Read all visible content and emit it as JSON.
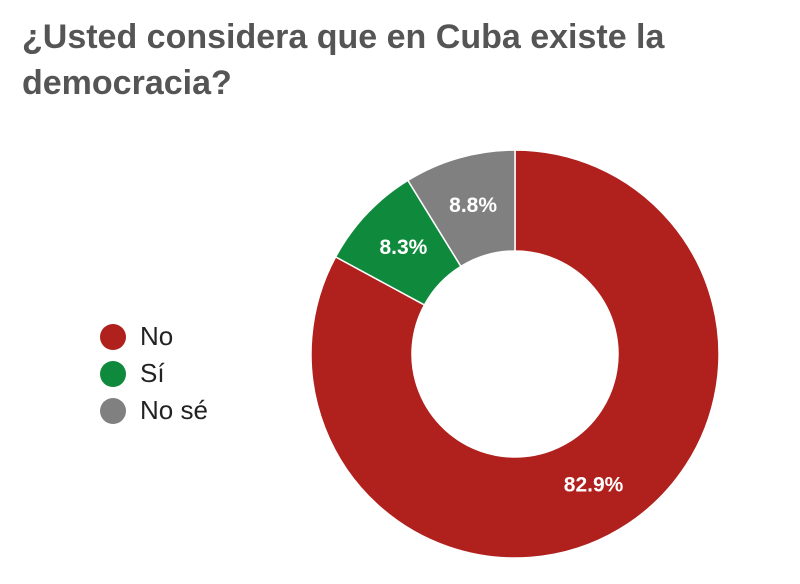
{
  "chart_data": {
    "type": "pie",
    "title": "¿Usted considera que en Cuba existe la democracia?",
    "categories": [
      "No",
      "Sí",
      "No sé"
    ],
    "values": [
      82.9,
      8.3,
      8.8
    ],
    "labels": [
      "82.9%",
      "8.3%",
      "8.8%"
    ],
    "colors": [
      "#b0201d",
      "#0f8a3c",
      "#808080"
    ],
    "donut": true,
    "legend_position": "left"
  }
}
